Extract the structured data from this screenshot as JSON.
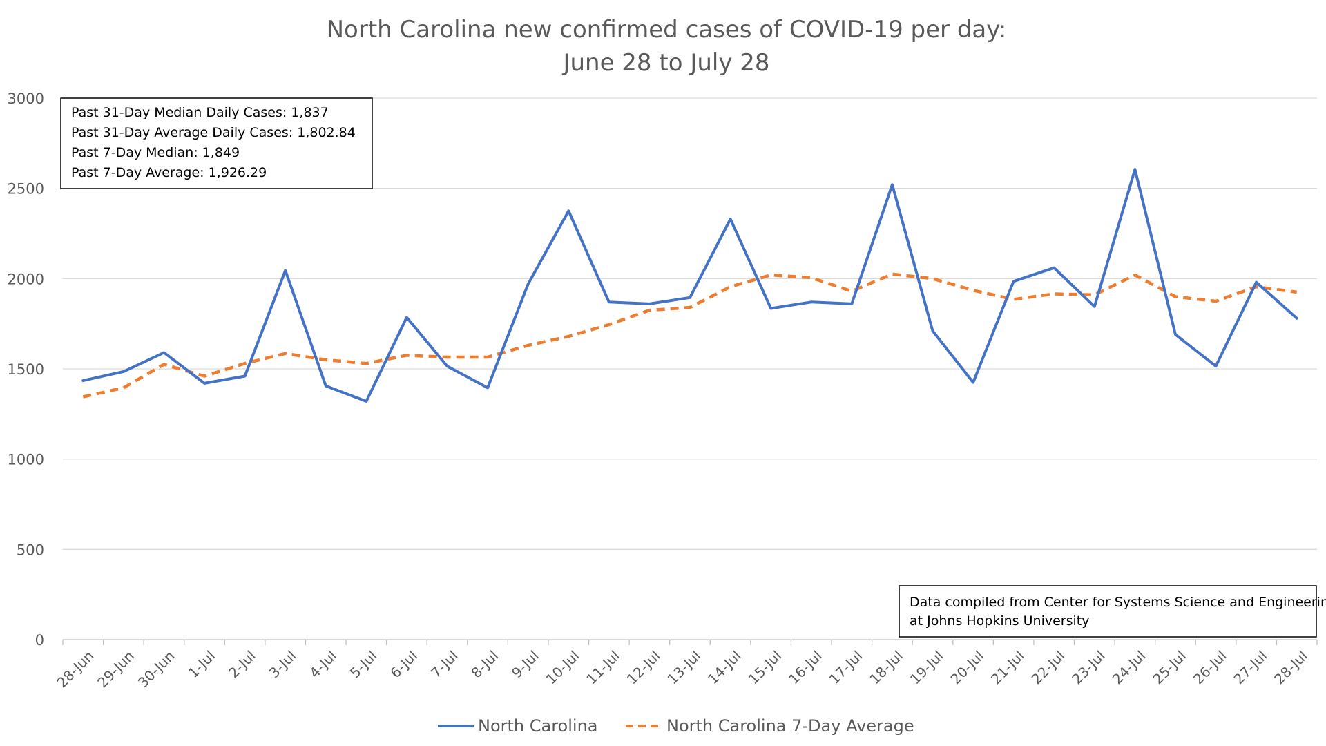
{
  "chart_data": {
    "type": "line",
    "title": "North Carolina new confirmed cases of COVID-19 per day:",
    "subtitle": "June 28 to July 28",
    "xlabel": "",
    "ylabel": "",
    "ylim": [
      0,
      3000
    ],
    "yticks": [
      0,
      500,
      1000,
      1500,
      2000,
      2500,
      3000
    ],
    "grid": true,
    "legend_position": "bottom",
    "categories": [
      "28-Jun",
      "29-Jun",
      "30-Jun",
      "1-Jul",
      "2-Jul",
      "3-Jul",
      "4-Jul",
      "5-Jul",
      "6-Jul",
      "7-Jul",
      "8-Jul",
      "9-Jul",
      "10-Jul",
      "11-Jul",
      "12-Jul",
      "13-Jul",
      "14-Jul",
      "15-Jul",
      "16-Jul",
      "17-Jul",
      "18-Jul",
      "19-Jul",
      "20-Jul",
      "21-Jul",
      "22-Jul",
      "23-Jul",
      "24-Jul",
      "25-Jul",
      "26-Jul",
      "27-Jul",
      "28-Jul"
    ],
    "series": [
      {
        "name": "North Carolina",
        "color": "#4472C4",
        "style": "solid",
        "values": [
          1435,
          1485,
          1590,
          1420,
          1460,
          2045,
          1405,
          1320,
          1785,
          1515,
          1395,
          1970,
          2375,
          1870,
          1860,
          1895,
          2330,
          1835,
          1870,
          1860,
          2520,
          1710,
          1425,
          1985,
          2060,
          1845,
          2605,
          1690,
          1515,
          1980,
          1780
        ]
      },
      {
        "name": "North Carolina 7-Day Average",
        "color": "#ED7D31",
        "style": "dashed",
        "values": [
          1345,
          1395,
          1525,
          1460,
          1530,
          1585,
          1550,
          1530,
          1575,
          1565,
          1565,
          1630,
          1680,
          1745,
          1825,
          1840,
          1955,
          2020,
          2005,
          1930,
          2025,
          2000,
          1935,
          1885,
          1915,
          1910,
          2020,
          1900,
          1875,
          1955,
          1925
        ]
      }
    ],
    "annotations": {
      "stats_box": [
        "Past 31-Day Median Daily Cases: 1,837",
        "Past 31-Day Average Daily Cases: 1,802.84",
        "Past 7-Day Median: 1,849",
        "Past 7-Day Average: 1,926.29"
      ],
      "source_box": [
        "Data compiled from Center for Systems Science and Engineering",
        "at Johns Hopkins University"
      ]
    }
  }
}
